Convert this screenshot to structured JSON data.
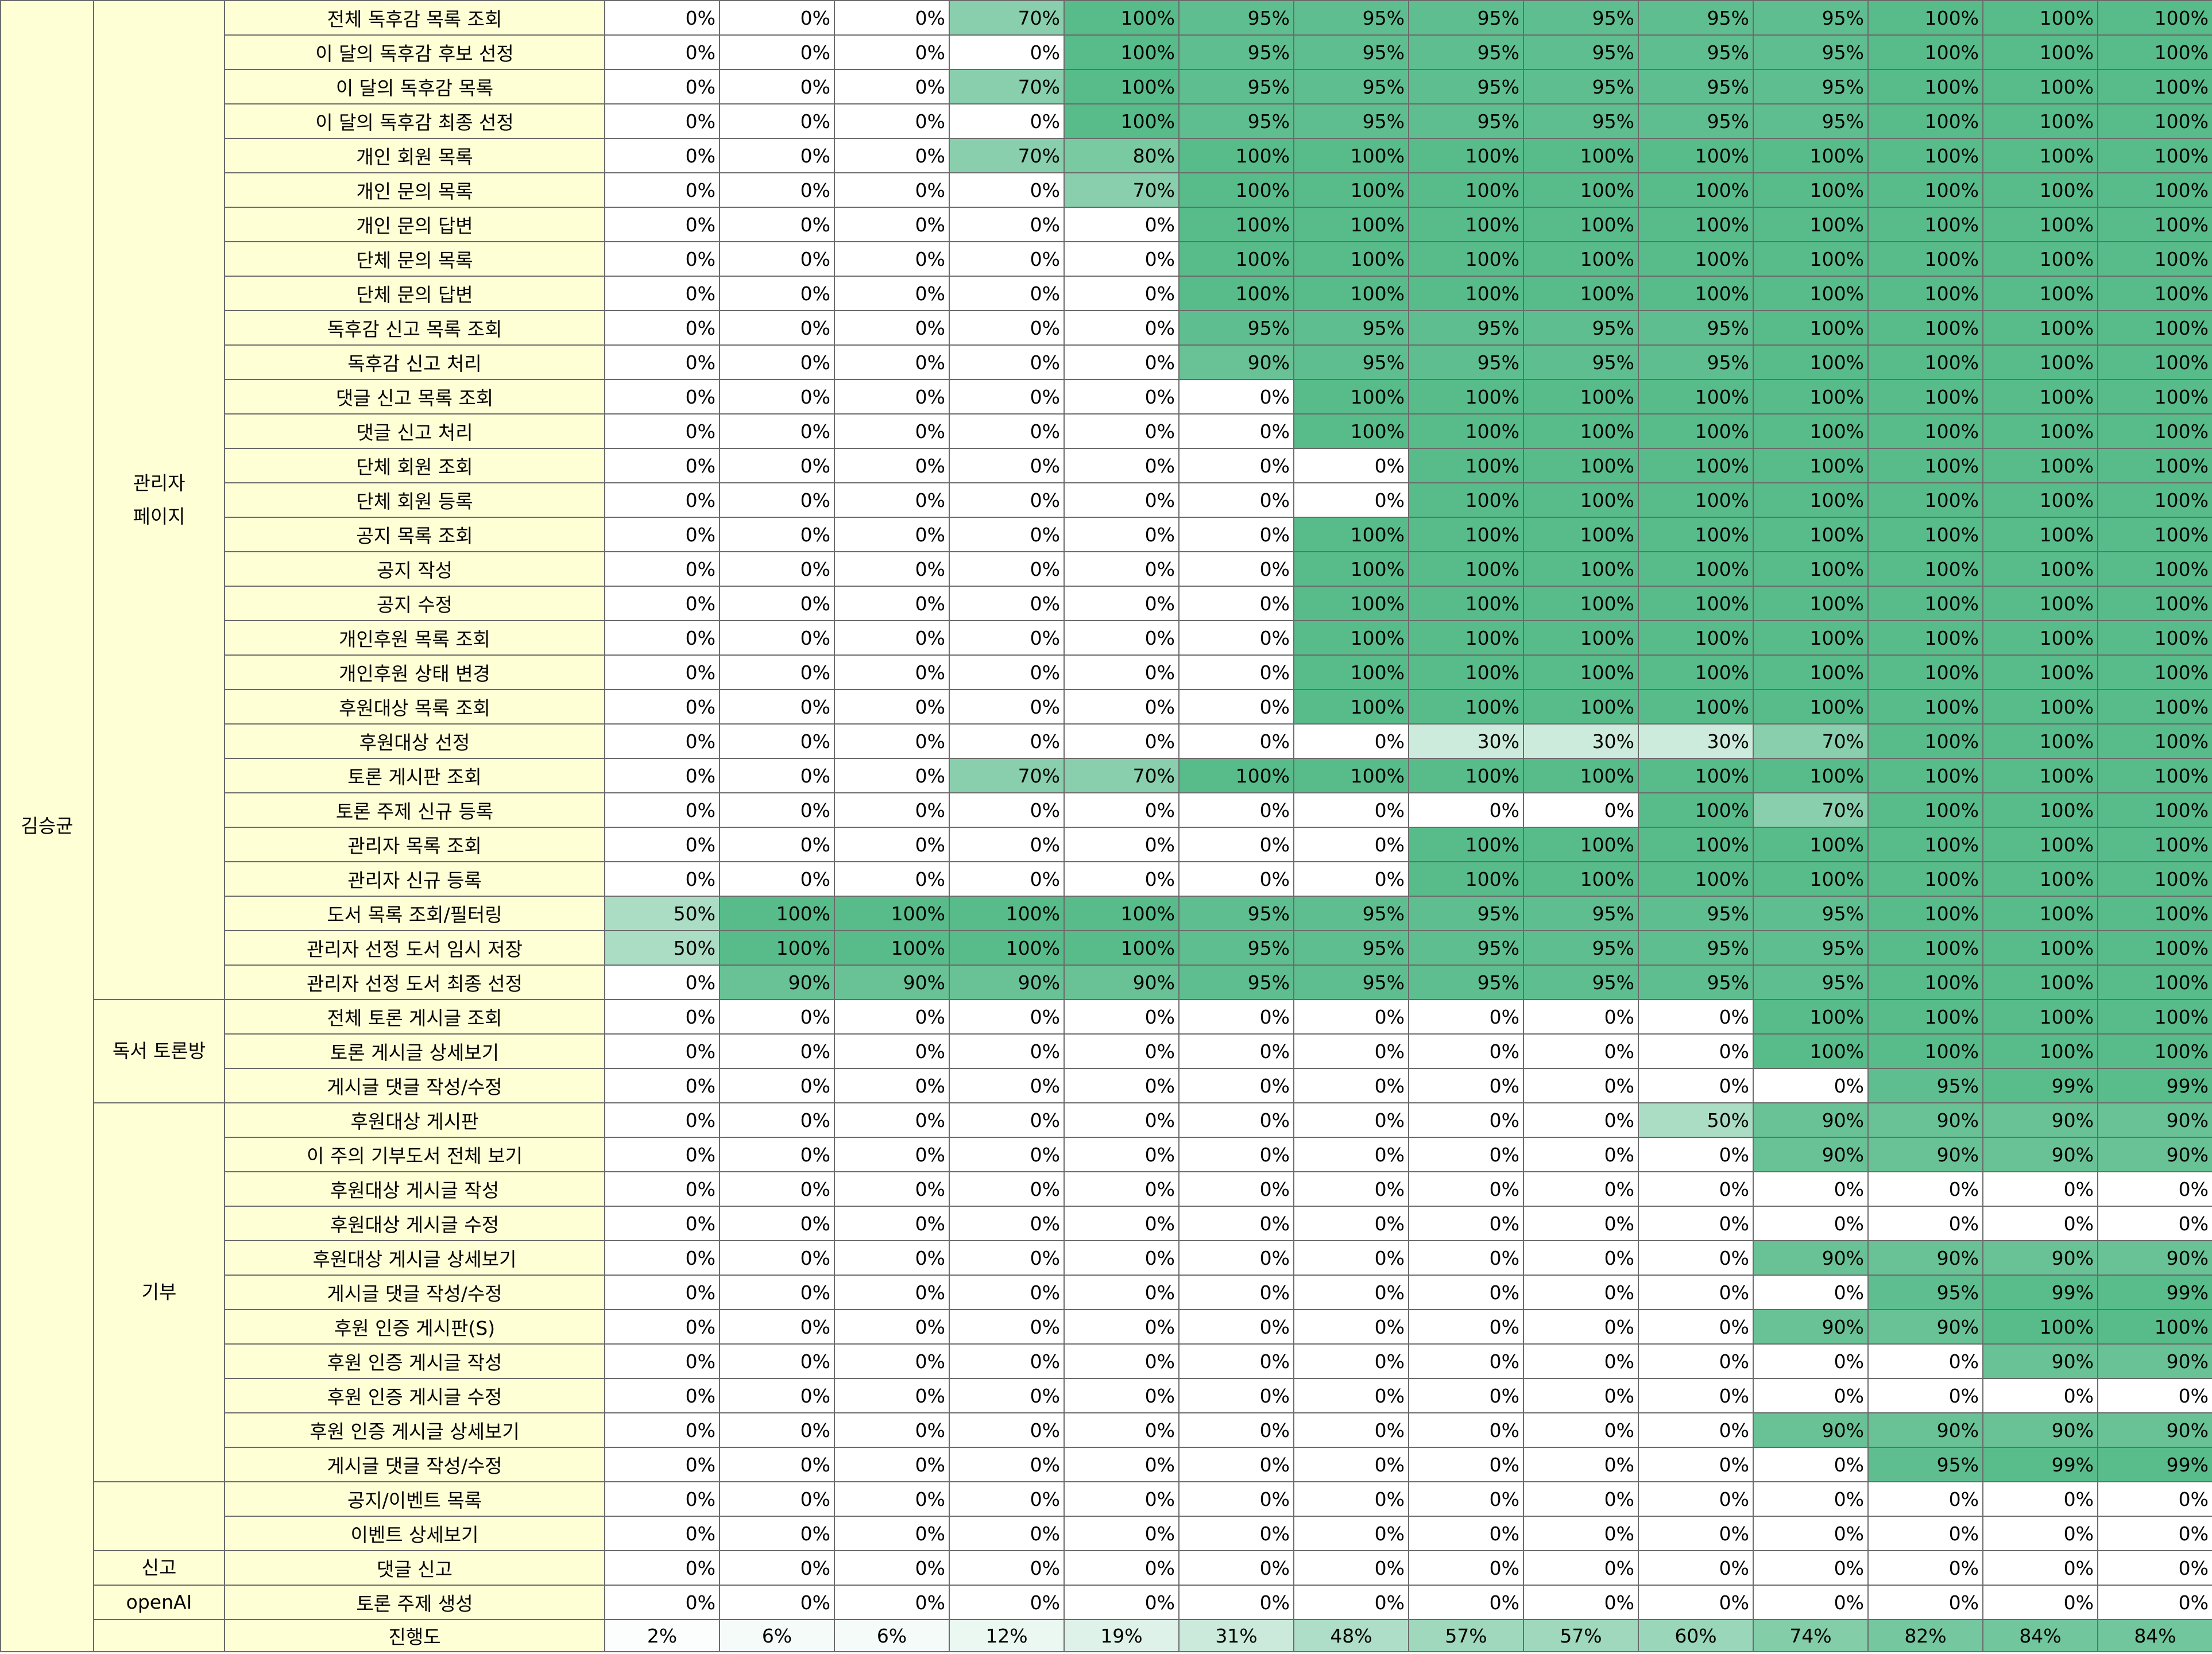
{
  "sheet": {
    "owner": "김승균",
    "column_count": 14,
    "colors": {
      "label_bg": "#ffffd6",
      "grid_line": "#6b6b6b",
      "progress_green": "#57bb8a",
      "empty_white": "#ffffff"
    },
    "groups": [
      {
        "category": "관리자\n페이지",
        "rows": [
          {
            "name": "전체 독후감 목록 조회",
            "values": [
              "0%",
              "0%",
              "0%",
              "70%",
              "100%",
              "95%",
              "95%",
              "95%",
              "95%",
              "95%",
              "95%",
              "100%",
              "100%",
              "100%"
            ]
          },
          {
            "name": "이 달의 독후감 후보 선정",
            "values": [
              "0%",
              "0%",
              "0%",
              "0%",
              "100%",
              "95%",
              "95%",
              "95%",
              "95%",
              "95%",
              "95%",
              "100%",
              "100%",
              "100%"
            ]
          },
          {
            "name": "이 달의 독후감 목록",
            "values": [
              "0%",
              "0%",
              "0%",
              "70%",
              "100%",
              "95%",
              "95%",
              "95%",
              "95%",
              "95%",
              "95%",
              "100%",
              "100%",
              "100%"
            ]
          },
          {
            "name": "이 달의 독후감 최종 선정",
            "values": [
              "0%",
              "0%",
              "0%",
              "0%",
              "100%",
              "95%",
              "95%",
              "95%",
              "95%",
              "95%",
              "95%",
              "100%",
              "100%",
              "100%"
            ]
          },
          {
            "name": "개인 회원 목록",
            "values": [
              "0%",
              "0%",
              "0%",
              "70%",
              "80%",
              "100%",
              "100%",
              "100%",
              "100%",
              "100%",
              "100%",
              "100%",
              "100%",
              "100%"
            ]
          },
          {
            "name": "개인 문의 목록",
            "values": [
              "0%",
              "0%",
              "0%",
              "0%",
              "70%",
              "100%",
              "100%",
              "100%",
              "100%",
              "100%",
              "100%",
              "100%",
              "100%",
              "100%"
            ]
          },
          {
            "name": "개인 문의 답변",
            "values": [
              "0%",
              "0%",
              "0%",
              "0%",
              "0%",
              "100%",
              "100%",
              "100%",
              "100%",
              "100%",
              "100%",
              "100%",
              "100%",
              "100%"
            ]
          },
          {
            "name": "단체 문의 목록",
            "values": [
              "0%",
              "0%",
              "0%",
              "0%",
              "0%",
              "100%",
              "100%",
              "100%",
              "100%",
              "100%",
              "100%",
              "100%",
              "100%",
              "100%"
            ]
          },
          {
            "name": "단체 문의 답변",
            "values": [
              "0%",
              "0%",
              "0%",
              "0%",
              "0%",
              "100%",
              "100%",
              "100%",
              "100%",
              "100%",
              "100%",
              "100%",
              "100%",
              "100%"
            ]
          },
          {
            "name": "독후감 신고 목록 조회",
            "values": [
              "0%",
              "0%",
              "0%",
              "0%",
              "0%",
              "95%",
              "95%",
              "95%",
              "95%",
              "95%",
              "100%",
              "100%",
              "100%",
              "100%"
            ]
          },
          {
            "name": "독후감 신고 처리",
            "values": [
              "0%",
              "0%",
              "0%",
              "0%",
              "0%",
              "90%",
              "95%",
              "95%",
              "95%",
              "95%",
              "100%",
              "100%",
              "100%",
              "100%"
            ]
          },
          {
            "name": "댓글 신고 목록 조회",
            "values": [
              "0%",
              "0%",
              "0%",
              "0%",
              "0%",
              "0%",
              "100%",
              "100%",
              "100%",
              "100%",
              "100%",
              "100%",
              "100%",
              "100%"
            ]
          },
          {
            "name": "댓글 신고 처리",
            "values": [
              "0%",
              "0%",
              "0%",
              "0%",
              "0%",
              "0%",
              "100%",
              "100%",
              "100%",
              "100%",
              "100%",
              "100%",
              "100%",
              "100%"
            ]
          },
          {
            "name": "단체 회원 조회",
            "values": [
              "0%",
              "0%",
              "0%",
              "0%",
              "0%",
              "0%",
              "0%",
              "100%",
              "100%",
              "100%",
              "100%",
              "100%",
              "100%",
              "100%"
            ]
          },
          {
            "name": "단체 회원 등록",
            "values": [
              "0%",
              "0%",
              "0%",
              "0%",
              "0%",
              "0%",
              "0%",
              "100%",
              "100%",
              "100%",
              "100%",
              "100%",
              "100%",
              "100%"
            ]
          },
          {
            "name": "공지 목록 조회",
            "values": [
              "0%",
              "0%",
              "0%",
              "0%",
              "0%",
              "0%",
              "100%",
              "100%",
              "100%",
              "100%",
              "100%",
              "100%",
              "100%",
              "100%"
            ]
          },
          {
            "name": "공지 작성",
            "values": [
              "0%",
              "0%",
              "0%",
              "0%",
              "0%",
              "0%",
              "100%",
              "100%",
              "100%",
              "100%",
              "100%",
              "100%",
              "100%",
              "100%"
            ]
          },
          {
            "name": "공지 수정",
            "values": [
              "0%",
              "0%",
              "0%",
              "0%",
              "0%",
              "0%",
              "100%",
              "100%",
              "100%",
              "100%",
              "100%",
              "100%",
              "100%",
              "100%"
            ]
          },
          {
            "name": "개인후원 목록 조회",
            "values": [
              "0%",
              "0%",
              "0%",
              "0%",
              "0%",
              "0%",
              "100%",
              "100%",
              "100%",
              "100%",
              "100%",
              "100%",
              "100%",
              "100%"
            ]
          },
          {
            "name": "개인후원 상태 변경",
            "values": [
              "0%",
              "0%",
              "0%",
              "0%",
              "0%",
              "0%",
              "100%",
              "100%",
              "100%",
              "100%",
              "100%",
              "100%",
              "100%",
              "100%"
            ]
          },
          {
            "name": "후원대상 목록 조회",
            "values": [
              "0%",
              "0%",
              "0%",
              "0%",
              "0%",
              "0%",
              "100%",
              "100%",
              "100%",
              "100%",
              "100%",
              "100%",
              "100%",
              "100%"
            ]
          },
          {
            "name": "후원대상 선정",
            "values": [
              "0%",
              "0%",
              "0%",
              "0%",
              "0%",
              "0%",
              "0%",
              "30%",
              "30%",
              "30%",
              "70%",
              "100%",
              "100%",
              "100%"
            ]
          },
          {
            "name": "토론 게시판 조회",
            "values": [
              "0%",
              "0%",
              "0%",
              "70%",
              "70%",
              "100%",
              "100%",
              "100%",
              "100%",
              "100%",
              "100%",
              "100%",
              "100%",
              "100%"
            ]
          },
          {
            "name": "토론 주제 신규 등록",
            "values": [
              "0%",
              "0%",
              "0%",
              "0%",
              "0%",
              "0%",
              "0%",
              "0%",
              "0%",
              "100%",
              "70%",
              "100%",
              "100%",
              "100%"
            ]
          },
          {
            "name": "관리자 목록 조회",
            "values": [
              "0%",
              "0%",
              "0%",
              "0%",
              "0%",
              "0%",
              "0%",
              "100%",
              "100%",
              "100%",
              "100%",
              "100%",
              "100%",
              "100%"
            ]
          },
          {
            "name": "관리자 신규 등록",
            "values": [
              "0%",
              "0%",
              "0%",
              "0%",
              "0%",
              "0%",
              "0%",
              "100%",
              "100%",
              "100%",
              "100%",
              "100%",
              "100%",
              "100%"
            ]
          },
          {
            "name": "도서 목록 조회/필터링",
            "values": [
              "50%",
              "100%",
              "100%",
              "100%",
              "100%",
              "95%",
              "95%",
              "95%",
              "95%",
              "95%",
              "95%",
              "100%",
              "100%",
              "100%"
            ]
          },
          {
            "name": "관리자 선정 도서 임시 저장",
            "values": [
              "50%",
              "100%",
              "100%",
              "100%",
              "100%",
              "95%",
              "95%",
              "95%",
              "95%",
              "95%",
              "95%",
              "100%",
              "100%",
              "100%"
            ]
          },
          {
            "name": "관리자 선정 도서 최종 선정",
            "values": [
              "0%",
              "90%",
              "90%",
              "90%",
              "90%",
              "95%",
              "95%",
              "95%",
              "95%",
              "95%",
              "95%",
              "100%",
              "100%",
              "100%"
            ]
          }
        ]
      },
      {
        "category": "독서 토론방",
        "rows": [
          {
            "name": "전체 토론 게시글 조회",
            "values": [
              "0%",
              "0%",
              "0%",
              "0%",
              "0%",
              "0%",
              "0%",
              "0%",
              "0%",
              "0%",
              "100%",
              "100%",
              "100%",
              "100%"
            ]
          },
          {
            "name": "토론 게시글 상세보기",
            "values": [
              "0%",
              "0%",
              "0%",
              "0%",
              "0%",
              "0%",
              "0%",
              "0%",
              "0%",
              "0%",
              "100%",
              "100%",
              "100%",
              "100%"
            ]
          },
          {
            "name": "게시글 댓글 작성/수정",
            "values": [
              "0%",
              "0%",
              "0%",
              "0%",
              "0%",
              "0%",
              "0%",
              "0%",
              "0%",
              "0%",
              "0%",
              "95%",
              "99%",
              "99%"
            ]
          }
        ]
      },
      {
        "category": "기부",
        "rows": [
          {
            "name": "후원대상 게시판",
            "values": [
              "0%",
              "0%",
              "0%",
              "0%",
              "0%",
              "0%",
              "0%",
              "0%",
              "0%",
              "50%",
              "90%",
              "90%",
              "90%",
              "90%"
            ]
          },
          {
            "name": "이 주의 기부도서 전체 보기",
            "values": [
              "0%",
              "0%",
              "0%",
              "0%",
              "0%",
              "0%",
              "0%",
              "0%",
              "0%",
              "0%",
              "90%",
              "90%",
              "90%",
              "90%"
            ]
          },
          {
            "name": "후원대상 게시글 작성",
            "values": [
              "0%",
              "0%",
              "0%",
              "0%",
              "0%",
              "0%",
              "0%",
              "0%",
              "0%",
              "0%",
              "0%",
              "0%",
              "0%",
              "0%"
            ]
          },
          {
            "name": "후원대상 게시글 수정",
            "values": [
              "0%",
              "0%",
              "0%",
              "0%",
              "0%",
              "0%",
              "0%",
              "0%",
              "0%",
              "0%",
              "0%",
              "0%",
              "0%",
              "0%"
            ]
          },
          {
            "name": "후원대상 게시글 상세보기",
            "values": [
              "0%",
              "0%",
              "0%",
              "0%",
              "0%",
              "0%",
              "0%",
              "0%",
              "0%",
              "0%",
              "90%",
              "90%",
              "90%",
              "90%"
            ]
          },
          {
            "name": "게시글 댓글 작성/수정",
            "values": [
              "0%",
              "0%",
              "0%",
              "0%",
              "0%",
              "0%",
              "0%",
              "0%",
              "0%",
              "0%",
              "0%",
              "95%",
              "99%",
              "99%"
            ]
          },
          {
            "name": "후원 인증 게시판(S)",
            "values": [
              "0%",
              "0%",
              "0%",
              "0%",
              "0%",
              "0%",
              "0%",
              "0%",
              "0%",
              "0%",
              "90%",
              "90%",
              "100%",
              "100%"
            ]
          },
          {
            "name": "후원 인증 게시글 작성",
            "values": [
              "0%",
              "0%",
              "0%",
              "0%",
              "0%",
              "0%",
              "0%",
              "0%",
              "0%",
              "0%",
              "0%",
              "0%",
              "90%",
              "90%"
            ]
          },
          {
            "name": "후원 인증 게시글 수정",
            "values": [
              "0%",
              "0%",
              "0%",
              "0%",
              "0%",
              "0%",
              "0%",
              "0%",
              "0%",
              "0%",
              "0%",
              "0%",
              "0%",
              "0%"
            ]
          },
          {
            "name": "후원 인증 게시글 상세보기",
            "values": [
              "0%",
              "0%",
              "0%",
              "0%",
              "0%",
              "0%",
              "0%",
              "0%",
              "0%",
              "0%",
              "90%",
              "90%",
              "90%",
              "90%"
            ]
          },
          {
            "name": "게시글 댓글 작성/수정",
            "values": [
              "0%",
              "0%",
              "0%",
              "0%",
              "0%",
              "0%",
              "0%",
              "0%",
              "0%",
              "0%",
              "0%",
              "95%",
              "99%",
              "99%"
            ]
          }
        ]
      },
      {
        "category": "",
        "rows": [
          {
            "name": "공지/이벤트 목록",
            "values": [
              "0%",
              "0%",
              "0%",
              "0%",
              "0%",
              "0%",
              "0%",
              "0%",
              "0%",
              "0%",
              "0%",
              "0%",
              "0%",
              "0%"
            ]
          },
          {
            "name": "이벤트 상세보기",
            "values": [
              "0%",
              "0%",
              "0%",
              "0%",
              "0%",
              "0%",
              "0%",
              "0%",
              "0%",
              "0%",
              "0%",
              "0%",
              "0%",
              "0%"
            ]
          }
        ]
      },
      {
        "category": "신고",
        "rows": [
          {
            "name": "댓글 신고",
            "values": [
              "0%",
              "0%",
              "0%",
              "0%",
              "0%",
              "0%",
              "0%",
              "0%",
              "0%",
              "0%",
              "0%",
              "0%",
              "0%",
              "0%"
            ]
          }
        ]
      },
      {
        "category": "openAI",
        "rows": [
          {
            "name": "토론 주제 생성",
            "values": [
              "0%",
              "0%",
              "0%",
              "0%",
              "0%",
              "0%",
              "0%",
              "0%",
              "0%",
              "0%",
              "0%",
              "0%",
              "0%",
              "0%"
            ]
          }
        ]
      }
    ],
    "summary": {
      "label": "진행도",
      "values": [
        "2%",
        "6%",
        "6%",
        "12%",
        "19%",
        "31%",
        "48%",
        "57%",
        "57%",
        "60%",
        "74%",
        "82%",
        "84%",
        "84%"
      ]
    }
  }
}
